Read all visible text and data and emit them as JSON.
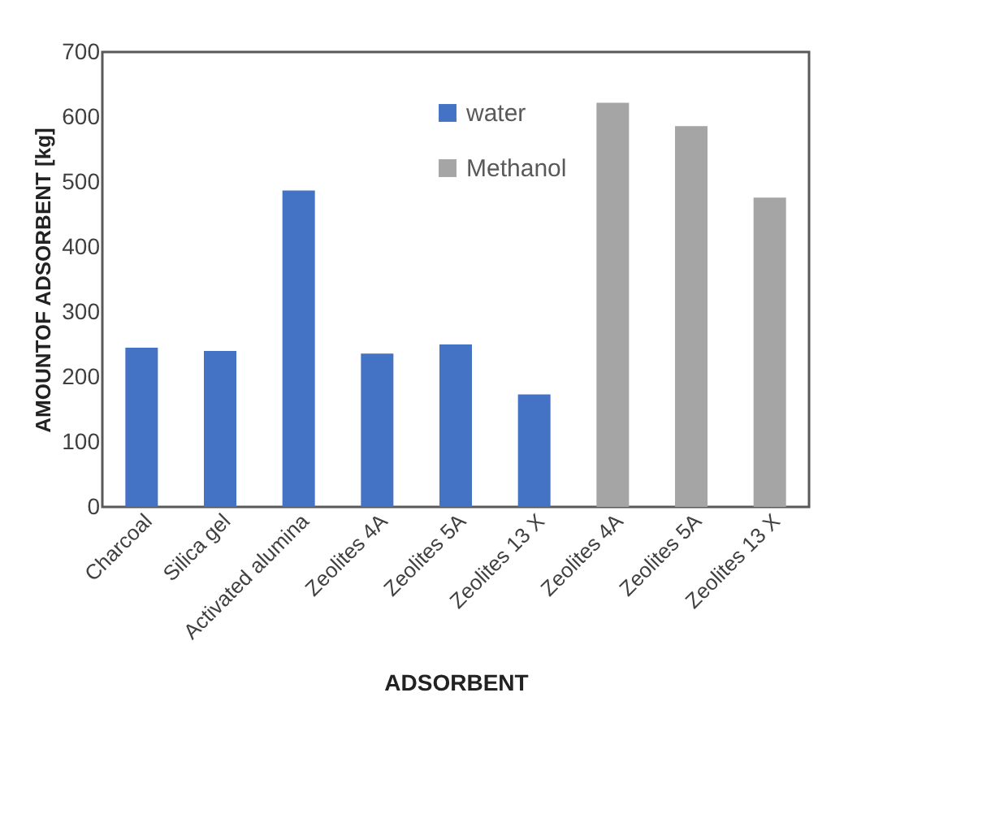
{
  "chart_data": {
    "type": "bar",
    "xlabel": "ADSORBENT",
    "ylabel": "AMOUNTOF ADSORBENT [kg]",
    "categories": [
      "Charcoal",
      "Silica gel",
      "Activated alumina",
      "Zeolites 4A",
      "Zeolites 5A",
      "Zeolites 13 X",
      "Zeolites 4A",
      "Zeolites 5A",
      "Zeolites 13 X"
    ],
    "series": [
      {
        "name": "water",
        "color": "#4472c4",
        "values": [
          245,
          240,
          487,
          236,
          250,
          173,
          null,
          null,
          null
        ]
      },
      {
        "name": "Methanol",
        "color": "#a5a5a5",
        "values": [
          null,
          null,
          null,
          null,
          null,
          null,
          622,
          586,
          476
        ]
      }
    ],
    "ylim": [
      0,
      700
    ],
    "yticks": [
      0,
      100,
      200,
      300,
      400,
      500,
      600,
      700
    ],
    "legend": "top"
  }
}
